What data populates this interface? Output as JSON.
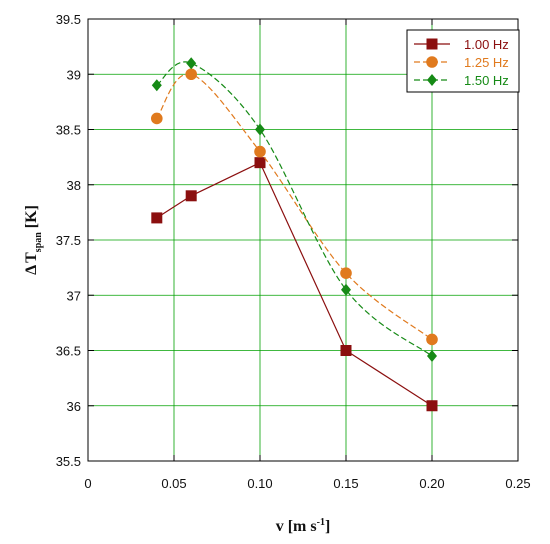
{
  "chart_data": {
    "type": "line",
    "xlabel": {
      "main": "v [m s",
      "sup": "-1",
      "tail": "]"
    },
    "ylabel": {
      "delta": "Δ",
      "main": "T",
      "sub": "span",
      "tail": " [K]"
    },
    "xlim": [
      0,
      0.25
    ],
    "ylim": [
      35.5,
      39.5
    ],
    "x_ticks": [
      {
        "value": 0,
        "label": "0"
      },
      {
        "value": 0.05,
        "label": "0.05"
      },
      {
        "value": 0.1,
        "label": "0.10"
      },
      {
        "value": 0.15,
        "label": "0.15"
      },
      {
        "value": 0.2,
        "label": "0.20"
      },
      {
        "value": 0.25,
        "label": "0.25"
      }
    ],
    "y_ticks": [
      {
        "value": 35.5,
        "label": "35.5"
      },
      {
        "value": 36,
        "label": "36"
      },
      {
        "value": 36.5,
        "label": "36.5"
      },
      {
        "value": 37,
        "label": "37"
      },
      {
        "value": 37.5,
        "label": "37.5"
      },
      {
        "value": 38,
        "label": "38"
      },
      {
        "value": 38.5,
        "label": "38.5"
      },
      {
        "value": 39,
        "label": "39"
      },
      {
        "value": 39.5,
        "label": "39.5"
      }
    ],
    "grid": true,
    "legend_position": "top-right",
    "series": [
      {
        "name": "1.00 Hz",
        "color": "#8b0f0f",
        "marker": "square",
        "line_style": "solid",
        "smooth": false,
        "x": [
          0.04,
          0.06,
          0.1,
          0.15,
          0.2
        ],
        "y": [
          37.7,
          37.9,
          38.2,
          36.5,
          36.0
        ]
      },
      {
        "name": "1.25 Hz",
        "color": "#e07a1e",
        "marker": "circle",
        "line_style": "dashed",
        "smooth": true,
        "x": [
          0.04,
          0.06,
          0.1,
          0.15,
          0.2
        ],
        "y": [
          38.6,
          39.0,
          38.3,
          37.2,
          36.6
        ]
      },
      {
        "name": "1.50 Hz",
        "color": "#168a16",
        "marker": "diamond",
        "line_style": "dashed",
        "smooth": true,
        "x": [
          0.04,
          0.06,
          0.1,
          0.15,
          0.2
        ],
        "y": [
          38.9,
          39.1,
          38.5,
          37.05,
          36.45
        ]
      }
    ]
  }
}
